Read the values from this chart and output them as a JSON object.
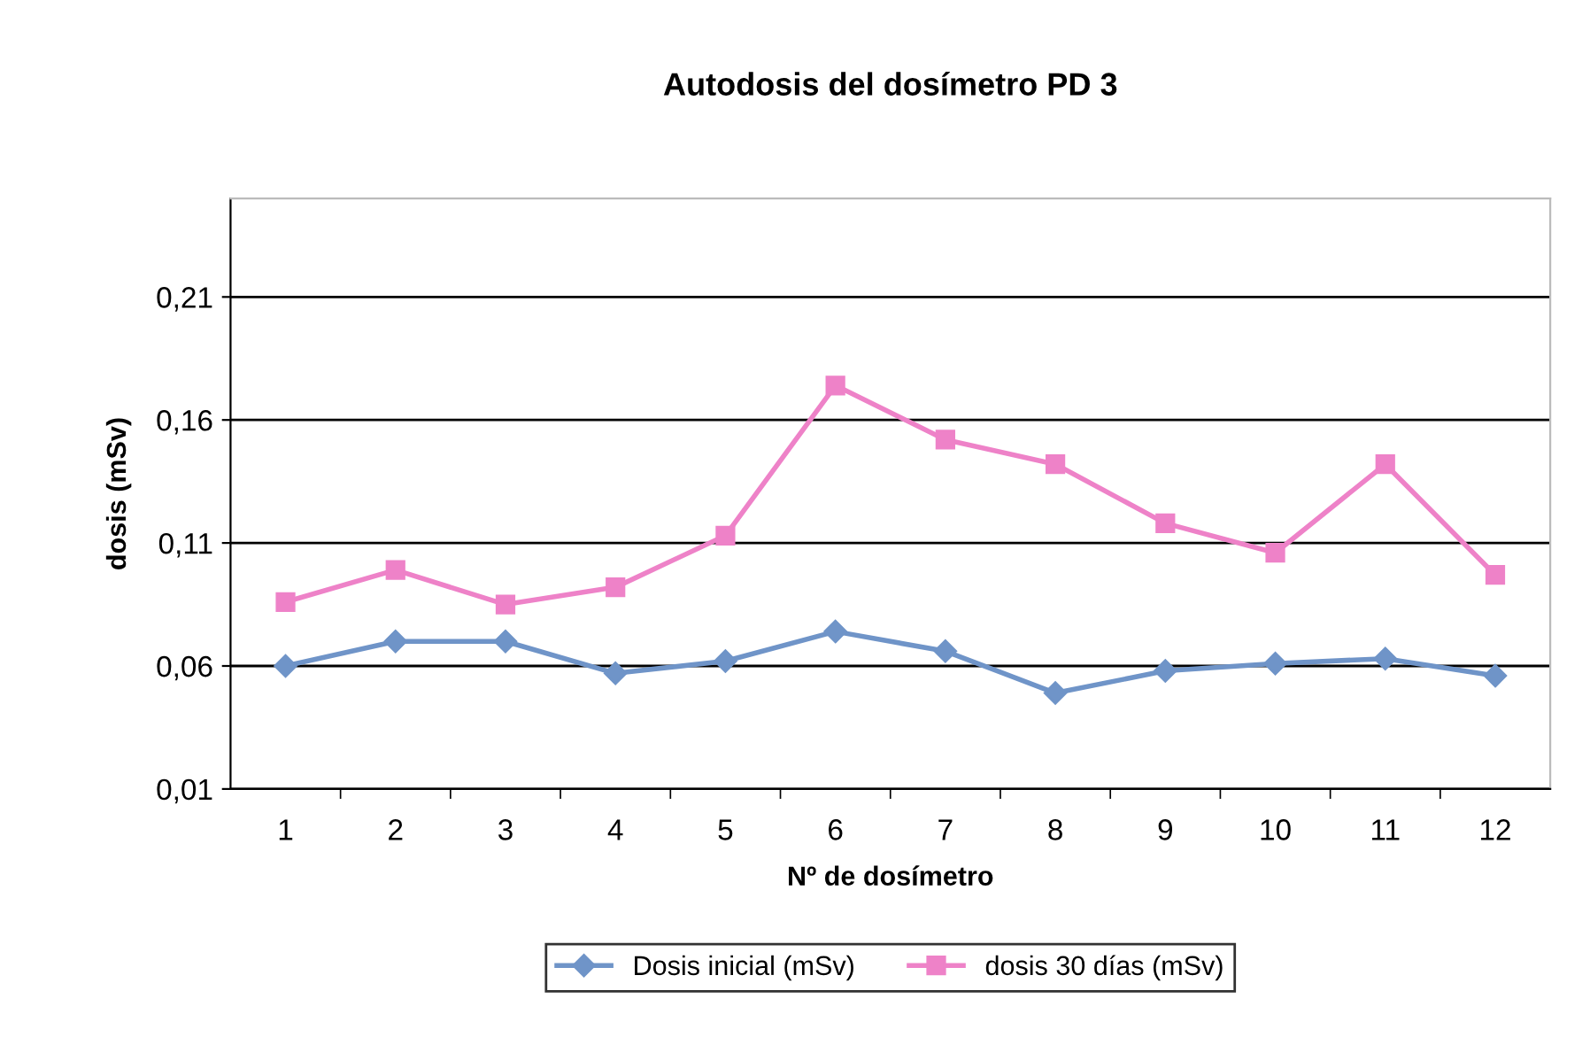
{
  "chart_data": {
    "type": "line",
    "title": "Autodosis del dosímetro PD 3",
    "xlabel": "Nº de dosímetro",
    "ylabel": "dosis (mSv)",
    "categories": [
      "1",
      "2",
      "3",
      "4",
      "5",
      "6",
      "7",
      "8",
      "9",
      "10",
      "11",
      "12"
    ],
    "series": [
      {
        "name": "Dosis inicial (mSv)",
        "color": "#6f94c8",
        "marker": "diamond",
        "values": [
          0.06,
          0.07,
          0.07,
          0.057,
          0.062,
          0.074,
          0.066,
          0.049,
          0.058,
          0.061,
          0.063,
          0.056
        ]
      },
      {
        "name": "dosis 30 días (mSv)",
        "color": "#ee82c8",
        "marker": "square",
        "values": [
          0.086,
          0.099,
          0.085,
          0.092,
          0.113,
          0.174,
          0.152,
          0.142,
          0.118,
          0.106,
          0.142,
          0.097
        ]
      }
    ],
    "ylim": [
      0.01,
      0.25
    ],
    "yticks": [
      {
        "value": 0.01,
        "label": "0,01"
      },
      {
        "value": 0.06,
        "label": "0,06"
      },
      {
        "value": 0.11,
        "label": "0,11"
      },
      {
        "value": 0.16,
        "label": "0,16"
      },
      {
        "value": 0.21,
        "label": "0,21"
      }
    ],
    "grid": "y",
    "legend": "bottom"
  }
}
